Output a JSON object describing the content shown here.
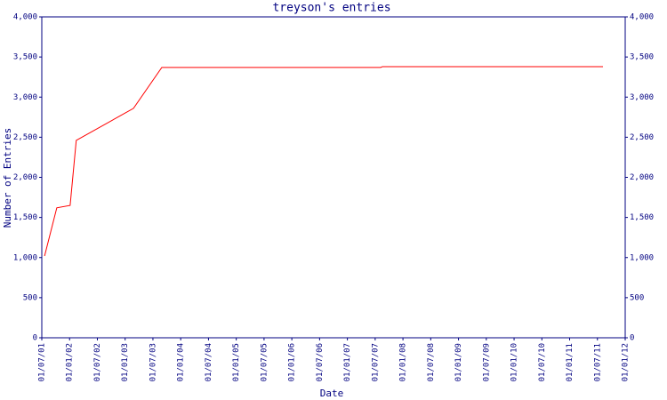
{
  "chart_data": {
    "type": "line",
    "title": "treyson's entries",
    "xlabel": "Date",
    "ylabel": "Number of Entries",
    "x": [
      2001.55,
      2001.77,
      2002.01,
      2002.12,
      2003.15,
      2003.66,
      2007.6,
      2007.63,
      2011.6
    ],
    "series": [
      {
        "color": "#ff0000",
        "values": [
          1020,
          1620,
          1650,
          2460,
          2860,
          3370,
          3370,
          3380,
          3380
        ]
      }
    ],
    "xlim": [
      2001.5,
      2012.0
    ],
    "xticks": [
      {
        "value": 2001.5,
        "label": "01/07/01"
      },
      {
        "value": 2002.0,
        "label": "01/01/02"
      },
      {
        "value": 2002.5,
        "label": "01/07/02"
      },
      {
        "value": 2003.0,
        "label": "01/01/03"
      },
      {
        "value": 2003.5,
        "label": "01/07/03"
      },
      {
        "value": 2004.0,
        "label": "01/01/04"
      },
      {
        "value": 2004.5,
        "label": "01/07/04"
      },
      {
        "value": 2005.0,
        "label": "01/01/05"
      },
      {
        "value": 2005.5,
        "label": "01/07/05"
      },
      {
        "value": 2006.0,
        "label": "01/01/06"
      },
      {
        "value": 2006.5,
        "label": "01/07/06"
      },
      {
        "value": 2007.0,
        "label": "01/01/07"
      },
      {
        "value": 2007.5,
        "label": "01/07/07"
      },
      {
        "value": 2008.0,
        "label": "01/01/08"
      },
      {
        "value": 2008.5,
        "label": "01/07/08"
      },
      {
        "value": 2009.0,
        "label": "01/01/09"
      },
      {
        "value": 2009.5,
        "label": "01/07/09"
      },
      {
        "value": 2010.0,
        "label": "01/01/10"
      },
      {
        "value": 2010.5,
        "label": "01/07/10"
      },
      {
        "value": 2011.0,
        "label": "01/01/11"
      },
      {
        "value": 2011.5,
        "label": "01/07/11"
      },
      {
        "value": 2012.0,
        "label": "01/01/12"
      }
    ],
    "ylim": [
      0,
      4000
    ],
    "yticks": [
      0,
      500,
      {
        "value": 1000,
        "label": "1,000"
      },
      {
        "value": 1500,
        "label": "1,500"
      },
      {
        "value": 2000,
        "label": "2,000"
      },
      {
        "value": 2500,
        "label": "2,500"
      },
      {
        "value": 3000,
        "label": "3,000"
      },
      {
        "value": 3500,
        "label": "3,500"
      },
      {
        "value": 4000,
        "label": "4,000"
      }
    ],
    "axis_color": "#000080",
    "grid": false
  }
}
